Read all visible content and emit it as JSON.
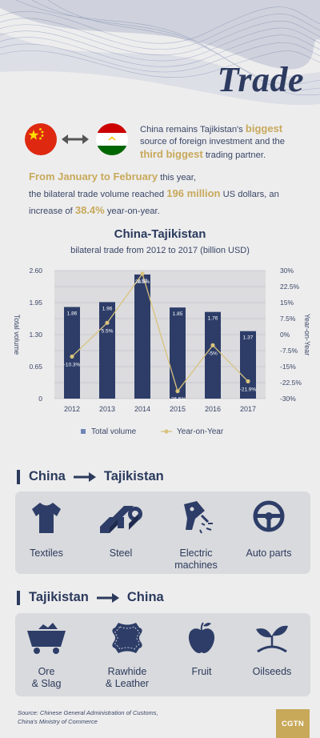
{
  "header": {
    "title": "Trade"
  },
  "intro": {
    "text_pre": "China remains Tajikistan's ",
    "biggest": "biggest",
    "text_mid": " source of foreign investment and the ",
    "third": "third biggest",
    "text_post": " trading partner."
  },
  "stats": {
    "period": "From January to February",
    "period_rest": " this year,",
    "line2_pre": "the bilateral trade volume reached ",
    "volume": "196 million",
    "line2_post": " US dollars, an increase of ",
    "growth": "38.4%",
    "line3_post": " year-on-year."
  },
  "chart_data": {
    "type": "bar",
    "title": "China-Tajikistan",
    "subtitle": "bilateral trade from 2012 to 2017 (billion USD)",
    "categories": [
      "2012",
      "2013",
      "2014",
      "2015",
      "2016",
      "2017"
    ],
    "series": [
      {
        "name": "Total volume",
        "type": "bar",
        "axis": "left",
        "values": [
          1.86,
          1.96,
          2.52,
          1.85,
          1.76,
          1.37
        ],
        "labels": [
          "1.86",
          "1.96",
          "2.52",
          "1.85",
          "1.76",
          "1.37"
        ]
      },
      {
        "name": "Year-on-Year",
        "type": "line",
        "axis": "right",
        "values": [
          -10.3,
          5.5,
          28.5,
          -26.5,
          -5,
          -21.9
        ],
        "labels": [
          "-10.3%",
          "5.5%",
          "28.5%",
          "-26.5%",
          "-5%",
          "-21.9%"
        ]
      }
    ],
    "ylabel": "Total volume",
    "y2label": "Year-on-Year",
    "ylim": [
      0,
      2.6
    ],
    "y2lim": [
      -30,
      30
    ],
    "yticks": [
      "0",
      "0.65",
      "1.30",
      "1.95",
      "2.60"
    ],
    "y2ticks": [
      "-30%",
      "-22.5%",
      "-15%",
      "-7.5%",
      "0%",
      "7.5%",
      "15%",
      "22.5%",
      "30%"
    ],
    "legend": [
      "Total volume",
      "Year-on-Year"
    ],
    "legend_position": "bottom",
    "grid": true,
    "colors": {
      "bar": "#2d3d68",
      "line": "#d9c27c"
    }
  },
  "export": {
    "from": "China",
    "to": "Tajikistan",
    "items": [
      {
        "label": "Textiles",
        "icon": "tshirt-icon"
      },
      {
        "label": "Steel",
        "icon": "steel-bars-icon"
      },
      {
        "label_lines": [
          "Electric",
          "machines"
        ],
        "icon": "power-drill-icon"
      },
      {
        "label": "Auto parts",
        "icon": "steering-wheel-icon"
      }
    ]
  },
  "import": {
    "from": "Tajikistan",
    "to": "China",
    "items": [
      {
        "label_lines": [
          "Ore",
          "& Slag"
        ],
        "icon": "ore-cart-icon"
      },
      {
        "label_lines": [
          "Rawhide",
          "& Leather"
        ],
        "icon": "hide-icon"
      },
      {
        "label": "Fruit",
        "icon": "apple-icon"
      },
      {
        "label": "Oilseeds",
        "icon": "sprout-icon"
      }
    ]
  },
  "footer": {
    "source_line1": "Source: Chinese General Administration of Customs,",
    "source_line2": "China's Ministry of Commerce",
    "logo": "CGTN"
  }
}
